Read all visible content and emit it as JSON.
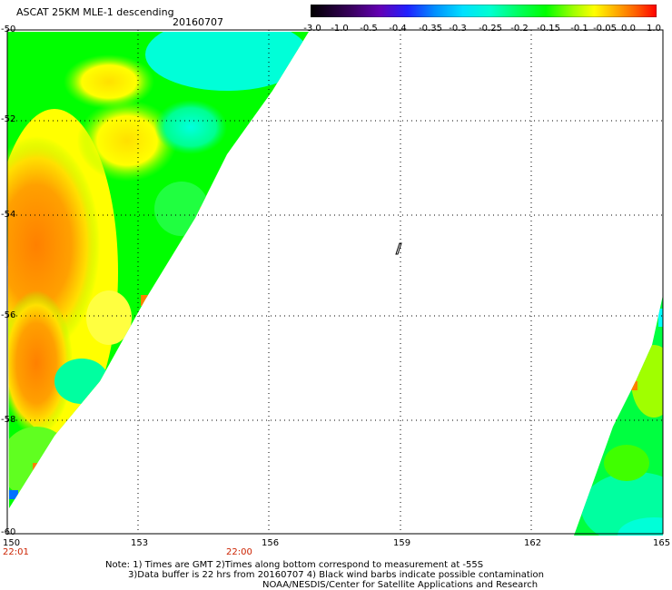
{
  "header": {
    "title": "ASCAT 25KM MLE-1 descending",
    "date": "20160707"
  },
  "colorbar": {
    "labels": [
      "-3.0",
      "-1.0",
      "-0.5",
      "-0.4",
      "-0.35",
      "-0.3",
      "-0.25",
      "-0.2",
      "-0.15",
      "-0.1",
      "-0.05",
      "0.0",
      "1.0"
    ],
    "colors": [
      "#000000",
      "#3a0060",
      "#6400b4",
      "#2020ff",
      "#0090ff",
      "#00e0ff",
      "#00ffd0",
      "#20f0a0",
      "#00ff00",
      "#80ff00",
      "#ffff00",
      "#ffb000",
      "#ff8000",
      "#ff3000",
      "#ff0000"
    ]
  },
  "map": {
    "lon_range": [
      150,
      165
    ],
    "lat_range": [
      -50,
      -60
    ],
    "lon_ticks": [
      "150",
      "153",
      "156",
      "159",
      "162",
      "165"
    ],
    "lat_ticks": [
      "-50",
      "-52",
      "-54",
      "-56",
      "-58",
      "-60"
    ],
    "time_labels": [
      "22:01",
      "22:00"
    ]
  },
  "notes": {
    "line1": "Note: 1) Times are GMT 2)Times along bottom correspond to measurement at -55S",
    "line2": "3)Data buffer is 22 hrs from 20160707 4) Black wind barbs indicate possible contamination",
    "line3": "NOAA/NESDIS/Center for Satellite Applications and Research"
  },
  "palette": {
    "cyan": "#00ffff",
    "aqua_green": "#00ff80",
    "green": "#00ff00",
    "lime": "#80ff00",
    "yellow": "#ffff00",
    "orange": "#ff8000",
    "red_orange": "#ff6000",
    "blue": "#0070ff"
  }
}
